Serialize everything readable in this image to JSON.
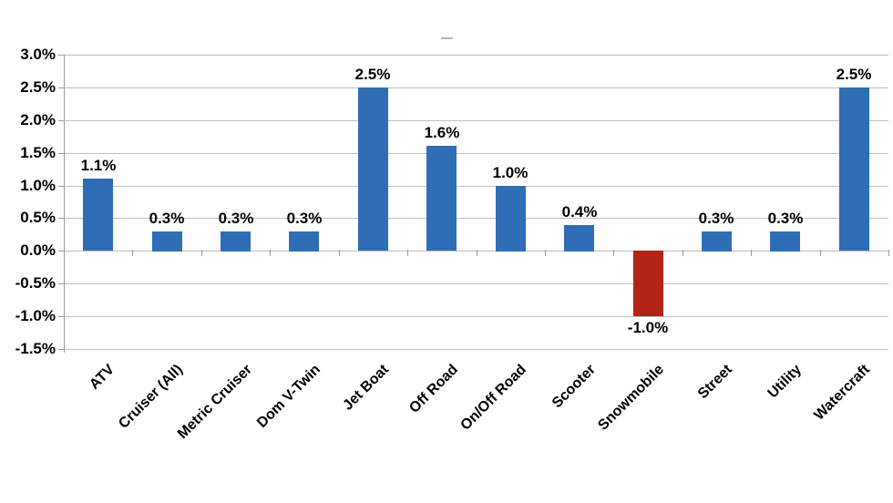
{
  "page": {
    "background": "#ffffff"
  },
  "chart_data": {
    "type": "bar",
    "title": "",
    "xlabel": "",
    "ylabel": "",
    "categories": [
      "ATV",
      "Cruiser (All)",
      "Metric Cruiser",
      "Dom V-Twin",
      "Jet Boat",
      "Off Road",
      "On/Off Road",
      "Scooter",
      "Snowmobile",
      "Street",
      "Utility",
      "Watercraft"
    ],
    "values": [
      1.1,
      0.3,
      0.3,
      0.3,
      2.5,
      1.6,
      1.0,
      0.4,
      -1.0,
      0.3,
      0.3,
      2.5
    ],
    "value_labels": [
      "1.1%",
      "0.3%",
      "0.3%",
      "0.3%",
      "2.5%",
      "1.6%",
      "1.0%",
      "0.4%",
      "-1.0%",
      "0.3%",
      "0.3%",
      "2.5%"
    ],
    "ylim": [
      -1.5,
      3.0
    ],
    "ytick_step": 0.5,
    "ytick_labels": [
      "3.0%",
      "2.5%",
      "2.0%",
      "1.5%",
      "1.0%",
      "0.5%",
      "0.0%",
      "-0.5%",
      "-1.0%",
      "-1.5%"
    ],
    "ytick_values": [
      3.0,
      2.5,
      2.0,
      1.5,
      1.0,
      0.5,
      0.0,
      -0.5,
      -1.0,
      -1.5
    ],
    "grid": true,
    "legend": false,
    "colors": {
      "positive_bar": "#2F6EB5",
      "negative_bar": "#B22318",
      "gridline": "#BFBFBF",
      "axis": "#999999",
      "text": "#000000",
      "artifact_dash": "#B3B3B3"
    }
  }
}
